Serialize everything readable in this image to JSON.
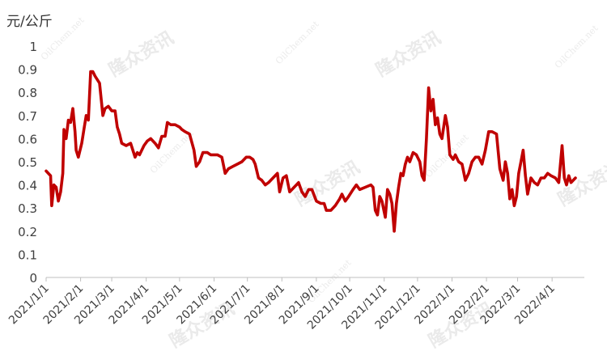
{
  "chart_data": {
    "type": "line",
    "title": "",
    "ylabel": "元/公斤",
    "xlabel": "",
    "ylim": [
      0,
      1
    ],
    "y_ticks": [
      "0",
      "0.1",
      "0.2",
      "0.3",
      "0.4",
      "0.5",
      "0.6",
      "0.7",
      "0.8",
      "0.9",
      "1"
    ],
    "grid": false,
    "legend": "none",
    "line_color": "#C00000",
    "x_tick_labels": [
      "2021/1/1",
      "2021/2/1",
      "2021/3/1",
      "2021/4/1",
      "2021/5/1",
      "2021/6/1",
      "2021/7/1",
      "2021/8/1",
      "2021/9/1",
      "2021/10/1",
      "2021/11/1",
      "2021/12/1",
      "2022/1/1",
      "2022/2/1",
      "2022/3/1",
      "2022/4/1"
    ],
    "x_range": [
      "2021-01-01",
      "2022-04-30"
    ],
    "series": [
      {
        "points": [
          [
            "2021-01-01",
            0.46
          ],
          [
            "2021-01-05",
            0.44
          ],
          [
            "2021-01-06",
            0.31
          ],
          [
            "2021-01-08",
            0.4
          ],
          [
            "2021-01-10",
            0.39
          ],
          [
            "2021-01-12",
            0.33
          ],
          [
            "2021-01-14",
            0.37
          ],
          [
            "2021-01-16",
            0.45
          ],
          [
            "2021-01-17",
            0.64
          ],
          [
            "2021-01-19",
            0.6
          ],
          [
            "2021-01-21",
            0.68
          ],
          [
            "2021-01-23",
            0.67
          ],
          [
            "2021-01-25",
            0.73
          ],
          [
            "2021-01-27",
            0.63
          ],
          [
            "2021-01-28",
            0.55
          ],
          [
            "2021-01-30",
            0.52
          ],
          [
            "2021-02-02",
            0.58
          ],
          [
            "2021-02-04",
            0.64
          ],
          [
            "2021-02-06",
            0.7
          ],
          [
            "2021-02-08",
            0.68
          ],
          [
            "2021-02-10",
            0.89
          ],
          [
            "2021-02-12",
            0.89
          ],
          [
            "2021-02-14",
            0.87
          ],
          [
            "2021-02-18",
            0.84
          ],
          [
            "2021-02-21",
            0.7
          ],
          [
            "2021-02-23",
            0.73
          ],
          [
            "2021-02-26",
            0.74
          ],
          [
            "2021-03-01",
            0.72
          ],
          [
            "2021-03-04",
            0.72
          ],
          [
            "2021-03-06",
            0.65
          ],
          [
            "2021-03-08",
            0.62
          ],
          [
            "2021-03-10",
            0.58
          ],
          [
            "2021-03-14",
            0.57
          ],
          [
            "2021-03-18",
            0.58
          ],
          [
            "2021-03-22",
            0.52
          ],
          [
            "2021-03-24",
            0.54
          ],
          [
            "2021-03-26",
            0.53
          ],
          [
            "2021-03-30",
            0.57
          ],
          [
            "2021-04-02",
            0.59
          ],
          [
            "2021-04-05",
            0.6
          ],
          [
            "2021-04-09",
            0.58
          ],
          [
            "2021-04-12",
            0.56
          ],
          [
            "2021-04-15",
            0.61
          ],
          [
            "2021-04-18",
            0.61
          ],
          [
            "2021-04-20",
            0.67
          ],
          [
            "2021-04-23",
            0.66
          ],
          [
            "2021-04-27",
            0.66
          ],
          [
            "2021-05-01",
            0.65
          ],
          [
            "2021-05-03",
            0.64
          ],
          [
            "2021-05-06",
            0.63
          ],
          [
            "2021-05-10",
            0.62
          ],
          [
            "2021-05-14",
            0.55
          ],
          [
            "2021-05-16",
            0.48
          ],
          [
            "2021-05-19",
            0.5
          ],
          [
            "2021-05-22",
            0.54
          ],
          [
            "2021-05-26",
            0.54
          ],
          [
            "2021-05-29",
            0.53
          ],
          [
            "2021-06-01",
            0.53
          ],
          [
            "2021-06-04",
            0.53
          ],
          [
            "2021-06-08",
            0.52
          ],
          [
            "2021-06-11",
            0.45
          ],
          [
            "2021-06-14",
            0.47
          ],
          [
            "2021-06-18",
            0.48
          ],
          [
            "2021-06-22",
            0.49
          ],
          [
            "2021-06-26",
            0.5
          ],
          [
            "2021-06-30",
            0.52
          ],
          [
            "2021-07-03",
            0.52
          ],
          [
            "2021-07-06",
            0.51
          ],
          [
            "2021-07-08",
            0.49
          ],
          [
            "2021-07-11",
            0.43
          ],
          [
            "2021-07-14",
            0.42
          ],
          [
            "2021-07-17",
            0.4
          ],
          [
            "2021-07-20",
            0.41
          ],
          [
            "2021-07-24",
            0.43
          ],
          [
            "2021-07-28",
            0.45
          ],
          [
            "2021-07-30",
            0.37
          ],
          [
            "2021-08-02",
            0.43
          ],
          [
            "2021-08-05",
            0.44
          ],
          [
            "2021-08-08",
            0.37
          ],
          [
            "2021-08-12",
            0.39
          ],
          [
            "2021-08-16",
            0.41
          ],
          [
            "2021-08-19",
            0.37
          ],
          [
            "2021-08-22",
            0.35
          ],
          [
            "2021-08-25",
            0.38
          ],
          [
            "2021-08-28",
            0.38
          ],
          [
            "2021-09-01",
            0.33
          ],
          [
            "2021-09-05",
            0.32
          ],
          [
            "2021-09-08",
            0.32
          ],
          [
            "2021-09-10",
            0.29
          ],
          [
            "2021-09-14",
            0.29
          ],
          [
            "2021-09-18",
            0.31
          ],
          [
            "2021-09-22",
            0.34
          ],
          [
            "2021-09-24",
            0.36
          ],
          [
            "2021-09-27",
            0.33
          ],
          [
            "2021-09-30",
            0.35
          ],
          [
            "2021-10-04",
            0.38
          ],
          [
            "2021-10-07",
            0.4
          ],
          [
            "2021-10-10",
            0.38
          ],
          [
            "2021-10-15",
            0.39
          ],
          [
            "2021-10-20",
            0.4
          ],
          [
            "2021-10-22",
            0.39
          ],
          [
            "2021-10-24",
            0.29
          ],
          [
            "2021-10-26",
            0.27
          ],
          [
            "2021-10-28",
            0.35
          ],
          [
            "2021-10-30",
            0.33
          ],
          [
            "2021-11-02",
            0.26
          ],
          [
            "2021-11-04",
            0.38
          ],
          [
            "2021-11-06",
            0.36
          ],
          [
            "2021-11-08",
            0.32
          ],
          [
            "2021-11-10",
            0.2
          ],
          [
            "2021-11-12",
            0.32
          ],
          [
            "2021-11-14",
            0.39
          ],
          [
            "2021-11-16",
            0.45
          ],
          [
            "2021-11-18",
            0.44
          ],
          [
            "2021-11-20",
            0.49
          ],
          [
            "2021-11-22",
            0.52
          ],
          [
            "2021-11-24",
            0.5
          ],
          [
            "2021-11-27",
            0.54
          ],
          [
            "2021-11-30",
            0.53
          ],
          [
            "2021-12-03",
            0.5
          ],
          [
            "2021-12-05",
            0.44
          ],
          [
            "2021-12-07",
            0.42
          ],
          [
            "2021-12-09",
            0.6
          ],
          [
            "2021-12-11",
            0.82
          ],
          [
            "2021-12-13",
            0.72
          ],
          [
            "2021-12-15",
            0.77
          ],
          [
            "2021-12-17",
            0.66
          ],
          [
            "2021-12-19",
            0.69
          ],
          [
            "2021-12-21",
            0.62
          ],
          [
            "2021-12-23",
            0.6
          ],
          [
            "2021-12-26",
            0.7
          ],
          [
            "2021-12-28",
            0.65
          ],
          [
            "2021-12-30",
            0.53
          ],
          [
            "2022-01-02",
            0.51
          ],
          [
            "2022-01-04",
            0.53
          ],
          [
            "2022-01-07",
            0.5
          ],
          [
            "2022-01-10",
            0.49
          ],
          [
            "2022-01-13",
            0.42
          ],
          [
            "2022-01-16",
            0.45
          ],
          [
            "2022-01-19",
            0.5
          ],
          [
            "2022-01-22",
            0.52
          ],
          [
            "2022-01-25",
            0.52
          ],
          [
            "2022-01-28",
            0.49
          ],
          [
            "2022-01-31",
            0.55
          ],
          [
            "2022-02-03",
            0.63
          ],
          [
            "2022-02-06",
            0.63
          ],
          [
            "2022-02-10",
            0.62
          ],
          [
            "2022-02-13",
            0.47
          ],
          [
            "2022-02-16",
            0.42
          ],
          [
            "2022-02-18",
            0.5
          ],
          [
            "2022-02-20",
            0.45
          ],
          [
            "2022-02-22",
            0.34
          ],
          [
            "2022-02-24",
            0.38
          ],
          [
            "2022-02-26",
            0.31
          ],
          [
            "2022-02-28",
            0.35
          ],
          [
            "2022-03-02",
            0.45
          ],
          [
            "2022-03-04",
            0.5
          ],
          [
            "2022-03-06",
            0.55
          ],
          [
            "2022-03-08",
            0.44
          ],
          [
            "2022-03-10",
            0.36
          ],
          [
            "2022-03-13",
            0.43
          ],
          [
            "2022-03-16",
            0.41
          ],
          [
            "2022-03-19",
            0.4
          ],
          [
            "2022-03-22",
            0.43
          ],
          [
            "2022-03-25",
            0.43
          ],
          [
            "2022-03-28",
            0.45
          ],
          [
            "2022-03-31",
            0.44
          ],
          [
            "2022-04-04",
            0.43
          ],
          [
            "2022-04-07",
            0.41
          ],
          [
            "2022-04-10",
            0.57
          ],
          [
            "2022-04-12",
            0.43
          ],
          [
            "2022-04-14",
            0.4
          ],
          [
            "2022-04-16",
            0.44
          ],
          [
            "2022-04-18",
            0.41
          ],
          [
            "2022-04-22",
            0.43
          ]
        ]
      }
    ]
  },
  "watermark": {
    "brand": "隆众资讯",
    "site": "OilChem.net"
  }
}
